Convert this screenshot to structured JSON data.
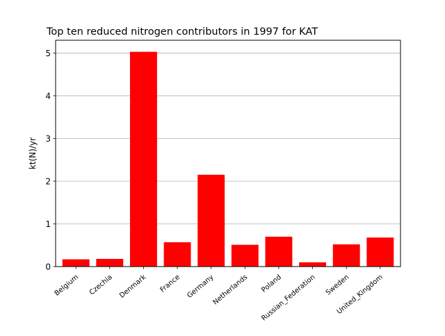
{
  "chart_data": {
    "type": "bar",
    "title": "Top ten reduced nitrogen contributors in 1997 for  KAT",
    "xlabel": "",
    "ylabel": "kt(N)/yr",
    "categories": [
      "Belgium",
      "Czechia",
      "Denmark",
      "France",
      "Germany",
      "Netherlands",
      "Poland",
      "Russian_Federation",
      "Sweden",
      "United_Kingdom"
    ],
    "values": [
      0.17,
      0.18,
      5.03,
      0.57,
      2.15,
      0.51,
      0.7,
      0.1,
      0.52,
      0.68
    ],
    "ylim": [
      0,
      5.3
    ],
    "yticks": [
      0,
      1,
      2,
      3,
      4,
      5
    ],
    "grid": "horizontal",
    "bar_color": "#ff0000",
    "tick_label_rotation_deg": -40
  }
}
